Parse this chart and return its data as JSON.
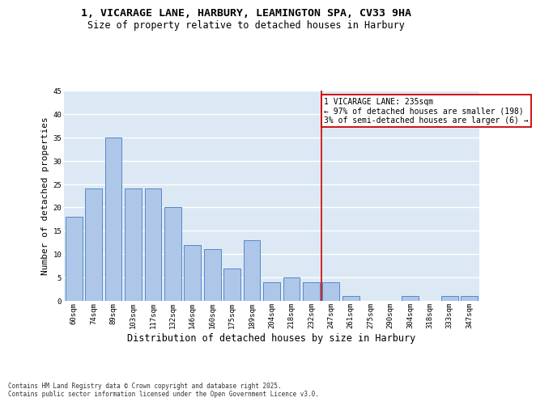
{
  "title_line1": "1, VICARAGE LANE, HARBURY, LEAMINGTON SPA, CV33 9HA",
  "title_line2": "Size of property relative to detached houses in Harbury",
  "xlabel": "Distribution of detached houses by size in Harbury",
  "ylabel": "Number of detached properties",
  "categories": [
    "60sqm",
    "74sqm",
    "89sqm",
    "103sqm",
    "117sqm",
    "132sqm",
    "146sqm",
    "160sqm",
    "175sqm",
    "189sqm",
    "204sqm",
    "218sqm",
    "232sqm",
    "247sqm",
    "261sqm",
    "275sqm",
    "290sqm",
    "304sqm",
    "318sqm",
    "333sqm",
    "347sqm"
  ],
  "values": [
    18,
    24,
    35,
    24,
    24,
    20,
    12,
    11,
    7,
    13,
    4,
    5,
    4,
    4,
    1,
    0,
    0,
    1,
    0,
    1,
    1
  ],
  "bar_color": "#aec6e8",
  "bar_edge_color": "#5589c8",
  "bg_color": "#dce9f5",
  "grid_color": "#ffffff",
  "annotation_text": "1 VICARAGE LANE: 235sqm\n← 97% of detached houses are smaller (198)\n3% of semi-detached houses are larger (6) →",
  "vline_x_index": 12.5,
  "annotation_box_color": "#cc0000",
  "ylim": [
    0,
    45
  ],
  "yticks": [
    0,
    5,
    10,
    15,
    20,
    25,
    30,
    35,
    40,
    45
  ],
  "footnote": "Contains HM Land Registry data © Crown copyright and database right 2025.\nContains public sector information licensed under the Open Government Licence v3.0.",
  "title_fontsize": 9.5,
  "subtitle_fontsize": 8.5,
  "ylabel_fontsize": 8,
  "xlabel_fontsize": 8.5,
  "tick_fontsize": 6.5,
  "annotation_fontsize": 7,
  "footnote_fontsize": 5.5
}
